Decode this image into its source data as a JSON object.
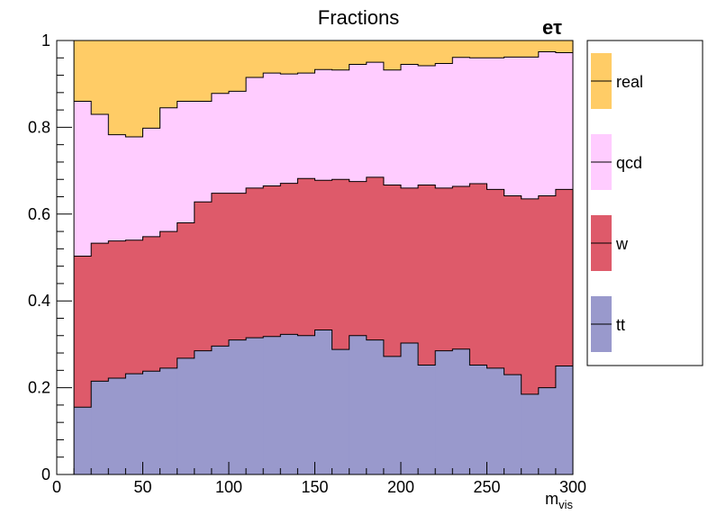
{
  "chart_data": {
    "type": "area",
    "title": "Fractions",
    "annotation": "eτ",
    "xlabel": "m",
    "xlabel_sub": "vis",
    "ylabel": "",
    "xlim": [
      0,
      300
    ],
    "ylim": [
      0,
      1
    ],
    "x_ticks": [
      0,
      50,
      100,
      150,
      200,
      250,
      300
    ],
    "y_ticks": [
      0,
      0.2,
      0.4,
      0.6,
      0.8,
      1
    ],
    "y_tick_labels": [
      "0",
      "0.2",
      "0.4",
      "0.6",
      "0.8",
      "1"
    ],
    "bin_edges": [
      10,
      20,
      30,
      40,
      50,
      60,
      70,
      80,
      90,
      100,
      110,
      120,
      130,
      140,
      150,
      160,
      170,
      180,
      190,
      200,
      210,
      220,
      230,
      240,
      250,
      260,
      270,
      280,
      290,
      300
    ],
    "grid": false,
    "legend_position": "right",
    "stack_order": [
      "tt",
      "w",
      "qcd",
      "real"
    ],
    "series": [
      {
        "name": "tt",
        "color": "#9999cc",
        "values": [
          0.155,
          0.215,
          0.222,
          0.232,
          0.238,
          0.245,
          0.268,
          0.285,
          0.296,
          0.31,
          0.315,
          0.318,
          0.323,
          0.32,
          0.333,
          0.288,
          0.32,
          0.31,
          0.272,
          0.303,
          0.252,
          0.285,
          0.289,
          0.252,
          0.245,
          0.23,
          0.185,
          0.2,
          0.25
        ]
      },
      {
        "name": "w",
        "color": "#de5a6a",
        "values": [
          0.348,
          0.318,
          0.316,
          0.308,
          0.31,
          0.315,
          0.312,
          0.343,
          0.352,
          0.338,
          0.345,
          0.347,
          0.348,
          0.362,
          0.345,
          0.392,
          0.355,
          0.375,
          0.395,
          0.357,
          0.415,
          0.375,
          0.375,
          0.418,
          0.412,
          0.412,
          0.45,
          0.442,
          0.407
        ]
      },
      {
        "name": "qcd",
        "color": "#ffccff",
        "values": [
          0.357,
          0.297,
          0.245,
          0.238,
          0.25,
          0.285,
          0.28,
          0.232,
          0.23,
          0.235,
          0.255,
          0.26,
          0.252,
          0.243,
          0.255,
          0.252,
          0.27,
          0.265,
          0.265,
          0.285,
          0.275,
          0.287,
          0.297,
          0.29,
          0.303,
          0.32,
          0.327,
          0.332,
          0.315
        ]
      },
      {
        "name": "real",
        "color": "#ffcc66",
        "values": [
          0.14,
          0.17,
          0.217,
          0.222,
          0.202,
          0.155,
          0.14,
          0.14,
          0.122,
          0.117,
          0.085,
          0.075,
          0.077,
          0.075,
          0.067,
          0.068,
          0.055,
          0.05,
          0.068,
          0.055,
          0.058,
          0.053,
          0.039,
          0.04,
          0.04,
          0.038,
          0.038,
          0.026,
          0.028
        ]
      }
    ]
  }
}
